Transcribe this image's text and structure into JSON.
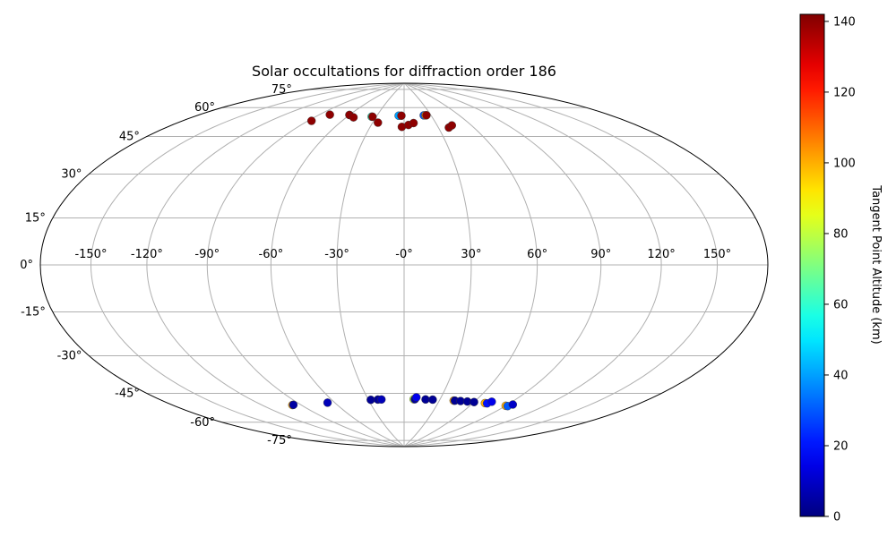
{
  "chart_data": {
    "type": "scatter",
    "projection": "hammer",
    "title": "Solar occultations for diffraction order 186",
    "grid": true,
    "lon_ticks": [
      -150,
      -120,
      -90,
      -60,
      -30,
      0,
      30,
      60,
      90,
      120,
      150
    ],
    "lon_tick_labels": [
      "-150°",
      "-120°",
      "-90°",
      "-60°",
      "-30°",
      "-0°",
      "30°",
      "60°",
      "90°",
      "120°",
      "150°"
    ],
    "lat_ticks": [
      75,
      60,
      45,
      30,
      15,
      0,
      -15,
      -30,
      -45,
      -60,
      -75
    ],
    "lat_tick_labels": [
      "75°",
      "60°",
      "45°",
      "30°",
      "15°",
      "0°",
      "-15°",
      "-30°",
      "-45°",
      "-60°",
      "-75°"
    ],
    "colorbar": {
      "label": "Tangent Point Altitude (km)",
      "range": [
        0,
        142
      ],
      "ticks": [
        0,
        20,
        40,
        60,
        80,
        100,
        120,
        140
      ],
      "tick_labels": [
        "0",
        "20",
        "40",
        "60",
        "80",
        "100",
        "120",
        "140"
      ],
      "colormap": "jet"
    },
    "series": [
      {
        "points": [
          {
            "lon": -87,
            "lat": 65,
            "value": 140
          },
          {
            "lon": -80,
            "lat": 69,
            "value": 140
          },
          {
            "lon": -60,
            "lat": 70,
            "value": 60
          },
          {
            "lon": -60,
            "lat": 70,
            "value": 140
          },
          {
            "lon": -53,
            "lat": 69,
            "value": 140
          },
          {
            "lon": -35,
            "lat": 70,
            "value": 60
          },
          {
            "lon": -34,
            "lat": 70,
            "value": 140
          },
          {
            "lon": -25,
            "lat": 67,
            "value": 140
          },
          {
            "lon": -6,
            "lat": 71,
            "value": 40
          },
          {
            "lon": -3,
            "lat": 71,
            "value": 140
          },
          {
            "lon": -2,
            "lat": 65,
            "value": 140
          },
          {
            "lon": 4,
            "lat": 66,
            "value": 140
          },
          {
            "lon": 9,
            "lat": 67,
            "value": 140
          },
          {
            "lon": 22,
            "lat": 71,
            "value": 30
          },
          {
            "lon": 24,
            "lat": 71,
            "value": 100
          },
          {
            "lon": 25,
            "lat": 71,
            "value": 140
          },
          {
            "lon": 39,
            "lat": 64,
            "value": 140
          },
          {
            "lon": 43,
            "lat": 65,
            "value": 140
          },
          {
            "lon": -97,
            "lat": -62,
            "value": 100
          },
          {
            "lon": -96,
            "lat": -62,
            "value": 5
          },
          {
            "lon": -66,
            "lat": -63,
            "value": 8
          },
          {
            "lon": -28,
            "lat": -63,
            "value": 3
          },
          {
            "lon": -22,
            "lat": -63,
            "value": 3
          },
          {
            "lon": -19,
            "lat": -63,
            "value": 8
          },
          {
            "lon": 8,
            "lat": -63,
            "value": 80
          },
          {
            "lon": 9,
            "lat": -63,
            "value": 3
          },
          {
            "lon": 10,
            "lat": -62,
            "value": 15
          },
          {
            "lon": 18,
            "lat": -63,
            "value": 3
          },
          {
            "lon": 24,
            "lat": -63,
            "value": 3
          },
          {
            "lon": 42,
            "lat": -63,
            "value": 100
          },
          {
            "lon": 43,
            "lat": -63,
            "value": 3
          },
          {
            "lon": 48,
            "lat": -63,
            "value": 3
          },
          {
            "lon": 54,
            "lat": -63,
            "value": 3
          },
          {
            "lon": 60,
            "lat": -63,
            "value": 3
          },
          {
            "lon": 70,
            "lat": -63,
            "value": 100
          },
          {
            "lon": 72,
            "lat": -63,
            "value": 20
          },
          {
            "lon": 74,
            "lat": -62,
            "value": 15
          },
          {
            "lon": 90,
            "lat": -63,
            "value": 100
          },
          {
            "lon": 92,
            "lat": -63,
            "value": 30
          },
          {
            "lon": 94,
            "lat": -62,
            "value": 10
          }
        ]
      }
    ]
  }
}
